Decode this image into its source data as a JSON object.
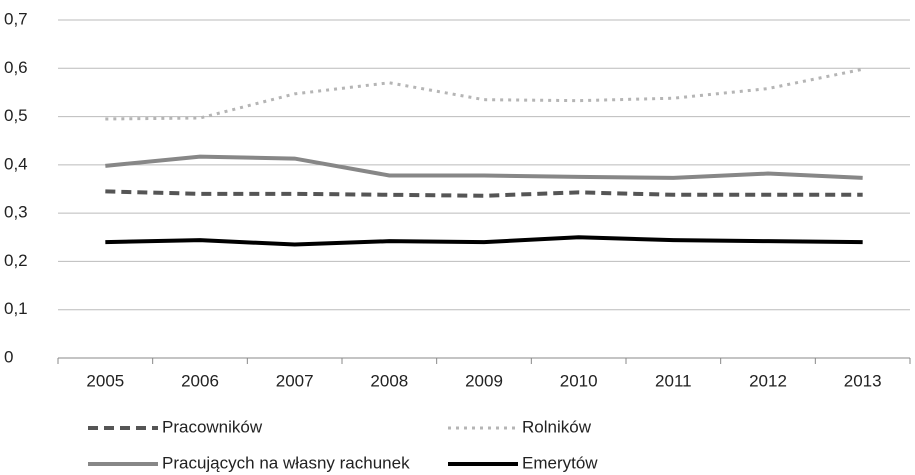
{
  "chart_data": {
    "type": "line",
    "categories": [
      "2005",
      "2006",
      "2007",
      "2008",
      "2009",
      "2010",
      "2011",
      "2012",
      "2013"
    ],
    "series": [
      {
        "name": "Pracowników",
        "color": "#555555",
        "line_style": "dashed",
        "values": [
          0.345,
          0.34,
          0.34,
          0.338,
          0.336,
          0.343,
          0.338,
          0.338,
          0.338
        ]
      },
      {
        "name": "Rolników",
        "color": "#b5b5b5",
        "line_style": "dotted",
        "values": [
          0.495,
          0.497,
          0.547,
          0.57,
          0.535,
          0.533,
          0.538,
          0.558,
          0.598
        ]
      },
      {
        "name": "Pracujących na własny rachunek",
        "color": "#878787",
        "line_style": "solid",
        "values": [
          0.398,
          0.417,
          0.413,
          0.378,
          0.378,
          0.375,
          0.373,
          0.382,
          0.373
        ]
      },
      {
        "name": "Emerytów",
        "color": "#000000",
        "line_style": "solid",
        "values": [
          0.24,
          0.244,
          0.235,
          0.242,
          0.24,
          0.25,
          0.244,
          0.242,
          0.24
        ]
      }
    ],
    "ylim": [
      0,
      0.7
    ],
    "yticks": [
      0,
      {
        "value": 0.1,
        "label": "0,1"
      },
      {
        "value": 0.2,
        "label": "0,2"
      },
      {
        "value": 0.3,
        "label": "0,3"
      },
      {
        "value": 0.4,
        "label": "0,4"
      },
      {
        "value": 0.5,
        "label": "0,5"
      },
      {
        "value": 0.6,
        "label": "0,6"
      },
      {
        "value": 0.7,
        "label": "0,7"
      }
    ],
    "grid": true
  }
}
